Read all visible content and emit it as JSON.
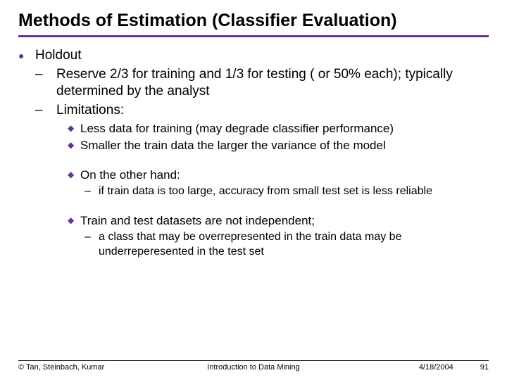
{
  "title": "Methods of Estimation (Classifier Evaluation)",
  "colors": {
    "accent": "#663399",
    "text": "#000000",
    "bg": "#ffffff"
  },
  "fonts": {
    "title_size": 25,
    "body_size": 19,
    "sub_size": 17,
    "subsub_size": 16,
    "footer_size": 11
  },
  "bullets": {
    "lvl1": {
      "glyph": "●",
      "text": "Holdout"
    },
    "lvl2a": {
      "glyph": "–",
      "text": "Reserve 2/3 for training and 1/3 for testing ( or 50% each); typically determined by the analyst"
    },
    "lvl2b": {
      "glyph": "–",
      "text": "Limitations:"
    },
    "lvl3a": {
      "glyph": "◆",
      "text": "Less data for training (may degrade classifier performance)"
    },
    "lvl3b": {
      "glyph": "◆",
      "text": "Smaller the train data the larger the variance of the model"
    },
    "lvl3c": {
      "glyph": "◆",
      "text": "On the other hand:"
    },
    "lvl4a": {
      "glyph": "–",
      "text": "if train data is too large, accuracy from small test set is less reliable"
    },
    "lvl3d": {
      "glyph": "◆",
      "text": "Train and test datasets are not independent;"
    },
    "lvl4b": {
      "glyph": "–",
      "text": " a class that may be overrepresented in the train data may be underreperesented in the test set"
    }
  },
  "footer": {
    "left": "© Tan, Steinbach, Kumar",
    "mid": "Introduction to Data Mining",
    "date": "4/18/2004",
    "page": "91"
  }
}
